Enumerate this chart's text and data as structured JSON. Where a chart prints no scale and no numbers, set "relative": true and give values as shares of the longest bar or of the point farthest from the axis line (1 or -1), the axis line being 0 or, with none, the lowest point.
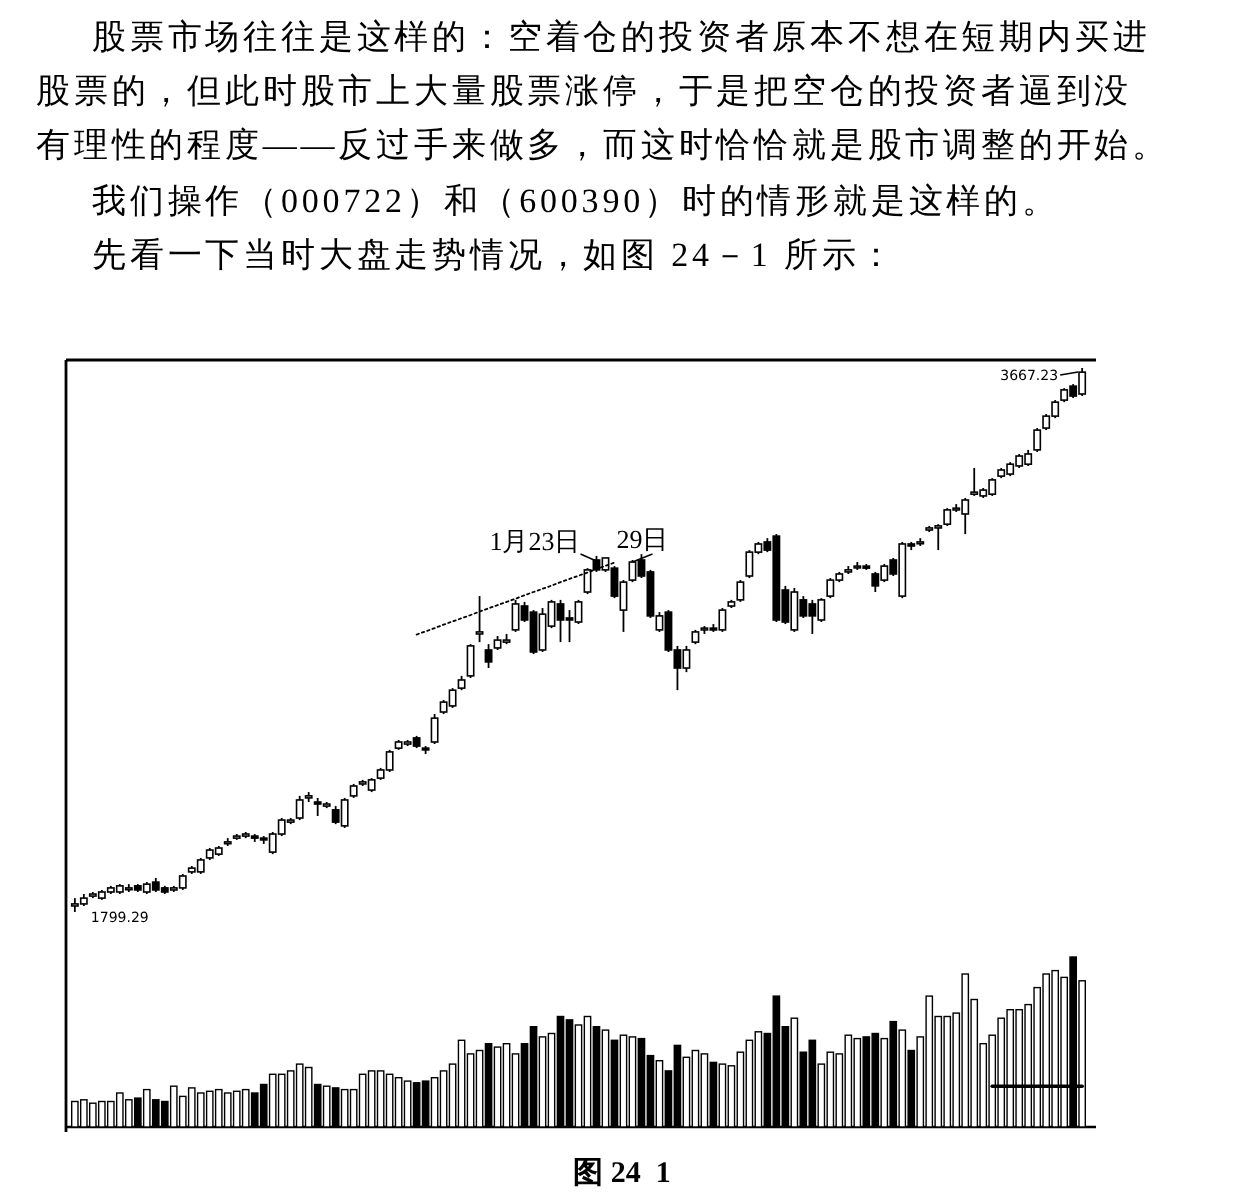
{
  "chart_data": [
    {
      "type": "candlestick",
      "color": "#000000",
      "categories": [
        null,
        null,
        null,
        null,
        null,
        null,
        null,
        null,
        null,
        null,
        null,
        null,
        null,
        null,
        null,
        null,
        null,
        null,
        null,
        null,
        null,
        null,
        null,
        null,
        null,
        null,
        null,
        null,
        null,
        null,
        null,
        null,
        null,
        null,
        null,
        null,
        null,
        null,
        null,
        null,
        null,
        null,
        null,
        null,
        null,
        null,
        null,
        null,
        null,
        null,
        null,
        null,
        null,
        null,
        null,
        null,
        null,
        null,
        null,
        null,
        null,
        null,
        null,
        null,
        null,
        null,
        null,
        null,
        null,
        null,
        null,
        null,
        null,
        null,
        null,
        null,
        null,
        null,
        null,
        null,
        null,
        null,
        null,
        null,
        null,
        null,
        null,
        null,
        null,
        null,
        null,
        null,
        null,
        null,
        null,
        null,
        null,
        null,
        null,
        null,
        null,
        null,
        null,
        null,
        null,
        null,
        null,
        null,
        null,
        null,
        null,
        null,
        null
      ],
      "ohlc": [
        [
          1820,
          1847,
          1799.29,
          1827
        ],
        [
          1827,
          1861,
          1820,
          1847
        ],
        [
          1854,
          1868,
          1847,
          1861
        ],
        [
          1847,
          1875,
          1841,
          1868
        ],
        [
          1868,
          1889,
          1861,
          1882
        ],
        [
          1868,
          1895,
          1861,
          1889
        ],
        [
          1882,
          1895,
          1868,
          1882
        ],
        [
          1889,
          1895,
          1868,
          1875
        ],
        [
          1868,
          1902,
          1861,
          1895
        ],
        [
          1902,
          1916,
          1868,
          1875
        ],
        [
          1882,
          1889,
          1861,
          1868
        ],
        [
          1875,
          1889,
          1868,
          1882
        ],
        [
          1882,
          1930,
          1875,
          1923
        ],
        [
          1937,
          1957,
          1930,
          1950
        ],
        [
          1937,
          1985,
          1930,
          1978
        ],
        [
          1985,
          2019,
          1978,
          2012
        ],
        [
          1998,
          2026,
          1992,
          2019
        ],
        [
          2040,
          2053,
          2026,
          2040
        ],
        [
          2053,
          2067,
          2047,
          2060
        ],
        [
          2060,
          2074,
          2053,
          2067
        ],
        [
          2060,
          2067,
          2040,
          2053
        ],
        [
          2053,
          2060,
          2033,
          2047
        ],
        [
          2005,
          2074,
          1998,
          2067
        ],
        [
          2067,
          2122,
          2060,
          2115
        ],
        [
          2108,
          2122,
          2101,
          2115
        ],
        [
          2122,
          2198,
          2115,
          2184
        ],
        [
          2191,
          2211,
          2177,
          2198
        ],
        [
          2177,
          2191,
          2129,
          2170
        ],
        [
          2163,
          2177,
          2156,
          2170
        ],
        [
          2150,
          2163,
          2101,
          2108
        ],
        [
          2095,
          2191,
          2088,
          2184
        ],
        [
          2198,
          2239,
          2191,
          2232
        ],
        [
          2239,
          2253,
          2232,
          2246
        ],
        [
          2218,
          2259,
          2211,
          2253
        ],
        [
          2259,
          2294,
          2253,
          2287
        ],
        [
          2287,
          2356,
          2280,
          2349
        ],
        [
          2362,
          2390,
          2356,
          2383
        ],
        [
          2376,
          2390,
          2369,
          2383
        ],
        [
          2397,
          2404,
          2362,
          2369
        ],
        [
          2362,
          2369,
          2342,
          2356
        ],
        [
          2383,
          2479,
          2376,
          2465
        ],
        [
          2486,
          2527,
          2479,
          2520
        ],
        [
          2507,
          2568,
          2500,
          2561
        ],
        [
          2568,
          2610,
          2561,
          2596
        ],
        [
          2610,
          2719,
          2603,
          2713
        ],
        [
          2754,
          2884,
          2726,
          2761
        ],
        [
          2699,
          2719,
          2637,
          2658
        ],
        [
          2706,
          2747,
          2699,
          2733
        ],
        [
          2726,
          2754,
          2719,
          2733
        ],
        [
          2768,
          2871,
          2761,
          2857
        ],
        [
          2850,
          2864,
          2795,
          2802
        ],
        [
          2829,
          2836,
          2685,
          2692
        ],
        [
          2699,
          2843,
          2692,
          2822
        ],
        [
          2781,
          2871,
          2774,
          2864
        ],
        [
          2857,
          2871,
          2726,
          2802
        ],
        [
          2809,
          2836,
          2726,
          2802
        ],
        [
          2795,
          2871,
          2788,
          2864
        ],
        [
          2898,
          2980,
          2891,
          2974
        ],
        [
          3008,
          3022,
          2967,
          2974
        ],
        [
          2974,
          3015,
          2967,
          3015
        ],
        [
          2980,
          2987,
          2877,
          2884
        ],
        [
          2836,
          2939,
          2761,
          2932
        ],
        [
          2939,
          3008,
          2932,
          3001
        ],
        [
          3008,
          3028,
          2946,
          2953
        ],
        [
          2967,
          2974,
          2809,
          2816
        ],
        [
          2768,
          2829,
          2761,
          2816
        ],
        [
          2829,
          2836,
          2692,
          2699
        ],
        [
          2699,
          2713,
          2561,
          2637
        ],
        [
          2637,
          2713,
          2623,
          2699
        ],
        [
          2726,
          2768,
          2719,
          2761
        ],
        [
          2768,
          2781,
          2754,
          2774
        ],
        [
          2774,
          2788,
          2761,
          2768
        ],
        [
          2768,
          2843,
          2761,
          2836
        ],
        [
          2850,
          2871,
          2843,
          2864
        ],
        [
          2871,
          2939,
          2864,
          2932
        ],
        [
          2953,
          3042,
          2946,
          3035
        ],
        [
          3035,
          3070,
          3028,
          3063
        ],
        [
          3070,
          3083,
          3035,
          3042
        ],
        [
          3090,
          3097,
          2795,
          2802
        ],
        [
          2905,
          2919,
          2788,
          2795
        ],
        [
          2768,
          2912,
          2761,
          2898
        ],
        [
          2871,
          2884,
          2809,
          2816
        ],
        [
          2857,
          2871,
          2754,
          2816
        ],
        [
          2802,
          2877,
          2795,
          2871
        ],
        [
          2884,
          2946,
          2877,
          2939
        ],
        [
          2939,
          2967,
          2932,
          2960
        ],
        [
          2967,
          2987,
          2960,
          2974
        ],
        [
          2987,
          3001,
          2974,
          2987
        ],
        [
          2987,
          2994,
          2974,
          2980
        ],
        [
          2960,
          2967,
          2898,
          2919
        ],
        [
          2939,
          2994,
          2932,
          2987
        ],
        [
          3008,
          3015,
          2953,
          2960
        ],
        [
          2884,
          3070,
          2877,
          3063
        ],
        [
          3063,
          3070,
          3042,
          3056
        ],
        [
          3070,
          3083,
          3056,
          3070
        ],
        [
          3111,
          3125,
          3104,
          3118
        ],
        [
          3118,
          3131,
          3042,
          3125
        ],
        [
          3131,
          3186,
          3125,
          3180
        ],
        [
          3180,
          3200,
          3173,
          3186
        ],
        [
          3166,
          3221,
          3097,
          3214
        ],
        [
          3234,
          3324,
          3228,
          3241
        ],
        [
          3228,
          3255,
          3221,
          3248
        ],
        [
          3234,
          3289,
          3228,
          3283
        ],
        [
          3296,
          3324,
          3289,
          3317
        ],
        [
          3303,
          3344,
          3296,
          3337
        ],
        [
          3331,
          3372,
          3324,
          3365
        ],
        [
          3337,
          3386,
          3331,
          3372
        ],
        [
          3386,
          3461,
          3379,
          3454
        ],
        [
          3461,
          3509,
          3454,
          3502
        ],
        [
          3502,
          3557,
          3495,
          3550
        ],
        [
          3557,
          3598,
          3550,
          3592
        ],
        [
          3605,
          3612,
          3564,
          3571
        ],
        [
          3578,
          3667.23,
          3571,
          3653
        ]
      ],
      "value_labels": [
        "1799.29",
        null,
        null,
        null,
        null,
        null,
        null,
        null,
        null,
        null,
        null,
        null,
        null,
        null,
        null,
        null,
        null,
        null,
        null,
        null,
        null,
        null,
        null,
        null,
        null,
        null,
        null,
        null,
        null,
        null,
        null,
        null,
        null,
        null,
        null,
        null,
        null,
        null,
        null,
        null,
        null,
        null,
        null,
        null,
        null,
        null,
        null,
        null,
        null,
        null,
        null,
        null,
        null,
        null,
        null,
        null,
        null,
        null,
        null,
        null,
        null,
        null,
        null,
        null,
        null,
        null,
        null,
        null,
        null,
        null,
        null,
        null,
        null,
        null,
        null,
        null,
        null,
        null,
        null,
        null,
        null,
        null,
        null,
        null,
        null,
        null,
        null,
        null,
        null,
        null,
        null,
        null,
        null,
        null,
        null,
        null,
        null,
        null,
        null,
        null,
        null,
        null,
        null,
        null,
        null,
        null,
        null,
        null,
        null,
        null,
        null,
        null,
        "3667.23"
      ],
      "series": [
        {
          "type": "line",
          "color": "#000000",
          "line_style": "dotted",
          "values": [
            null,
            null,
            null,
            null,
            null,
            null,
            null,
            null,
            null,
            null,
            null,
            null,
            null,
            null,
            null,
            null,
            null,
            null,
            null,
            null,
            null,
            null,
            null,
            null,
            null,
            null,
            null,
            null,
            null,
            null,
            null,
            null,
            null,
            null,
            null,
            null,
            null,
            null,
            2752,
            2763,
            2774,
            2786,
            2797,
            2808,
            2819,
            2831,
            2842,
            2853,
            2864,
            2875,
            2887,
            2898,
            2909,
            2920,
            2932,
            2943,
            2954,
            2965,
            2977,
            2988,
            2999,
            null,
            null,
            null,
            null,
            null,
            null,
            null,
            null,
            null,
            null,
            null,
            null,
            null,
            null,
            null,
            null,
            null,
            null,
            null,
            null,
            null,
            null,
            null,
            null,
            null,
            null,
            null,
            null,
            null,
            null,
            null,
            null,
            null,
            null,
            null,
            null,
            null,
            null,
            null,
            null,
            null,
            null,
            null,
            null,
            null,
            null,
            null,
            null,
            null,
            null,
            null,
            null
          ]
        }
      ],
      "annotations": [
        "股票市场往往是这样的：空着仓的投资者原本不想在短期内买进股票的，但此时股市上大量股票涨停，于是把空仓的投资者逼到没有理性的程度——反过手来做多，而这时恰恰就是股市调整的开始。",
        "我们操作（000722）和（600390）时的情形就是这样的。",
        "先看一下当时大盘走势情况，如图 24－1 所示：",
        "1月23日",
        "29日"
      ]
    },
    {
      "type": "bar",
      "relative": true,
      "categories": [
        null,
        null,
        null,
        null,
        null,
        null,
        null,
        null,
        null,
        null,
        null,
        null,
        null,
        null,
        null,
        null,
        null,
        null,
        null,
        null,
        null,
        null,
        null,
        null,
        null,
        null,
        null,
        null,
        null,
        null,
        null,
        null,
        null,
        null,
        null,
        null,
        null,
        null,
        null,
        null,
        null,
        null,
        null,
        null,
        null,
        null,
        null,
        null,
        null,
        null,
        null,
        null,
        null,
        null,
        null,
        null,
        null,
        null,
        null,
        null,
        null,
        null,
        null,
        null,
        null,
        null,
        null,
        null,
        null,
        null,
        null,
        null,
        null,
        null,
        null,
        null,
        null,
        null,
        null,
        null,
        null,
        null,
        null,
        null,
        null,
        null,
        null,
        null,
        null,
        null,
        null,
        null,
        null,
        null,
        null,
        null,
        null,
        null,
        null,
        null,
        null,
        null,
        null,
        null,
        null,
        null,
        null,
        null,
        null,
        null,
        null,
        null,
        null
      ],
      "series": [
        {
          "type": "bar",
          "colors": [
            "#ffffff",
            "#ffffff",
            "#ffffff",
            "#ffffff",
            "#ffffff",
            "#ffffff",
            "#ffffff",
            "#000000",
            "#ffffff",
            "#000000",
            "#000000",
            "#ffffff",
            "#ffffff",
            "#ffffff",
            "#ffffff",
            "#ffffff",
            "#ffffff",
            "#ffffff",
            "#ffffff",
            "#ffffff",
            "#000000",
            "#000000",
            "#ffffff",
            "#ffffff",
            "#ffffff",
            "#ffffff",
            "#ffffff",
            "#000000",
            "#ffffff",
            "#000000",
            "#ffffff",
            "#ffffff",
            "#ffffff",
            "#ffffff",
            "#ffffff",
            "#ffffff",
            "#ffffff",
            "#ffffff",
            "#000000",
            "#000000",
            "#ffffff",
            "#ffffff",
            "#ffffff",
            "#ffffff",
            "#ffffff",
            "#ffffff",
            "#000000",
            "#ffffff",
            "#ffffff",
            "#ffffff",
            "#000000",
            "#000000",
            "#ffffff",
            "#ffffff",
            "#000000",
            "#000000",
            "#ffffff",
            "#ffffff",
            "#000000",
            "#ffffff",
            "#000000",
            "#ffffff",
            "#ffffff",
            "#000000",
            "#000000",
            "#ffffff",
            "#000000",
            "#000000",
            "#ffffff",
            "#ffffff",
            "#ffffff",
            "#000000",
            "#ffffff",
            "#ffffff",
            "#ffffff",
            "#ffffff",
            "#ffffff",
            "#000000",
            "#000000",
            "#000000",
            "#ffffff",
            "#000000",
            "#000000",
            "#ffffff",
            "#ffffff",
            "#ffffff",
            "#ffffff",
            "#ffffff",
            "#000000",
            "#000000",
            "#ffffff",
            "#000000",
            "#ffffff",
            "#000000",
            "#ffffff",
            "#ffffff",
            "#ffffff",
            "#ffffff",
            "#ffffff",
            "#ffffff",
            "#ffffff",
            "#ffffff",
            "#ffffff",
            "#ffffff",
            "#ffffff",
            "#ffffff",
            "#ffffff",
            "#ffffff",
            "#ffffff",
            "#ffffff",
            "#ffffff",
            "#000000",
            "#ffffff"
          ],
          "values": [
            0.15,
            0.16,
            0.14,
            0.15,
            0.15,
            0.2,
            0.16,
            0.17,
            0.22,
            0.16,
            0.15,
            0.24,
            0.18,
            0.23,
            0.2,
            0.21,
            0.22,
            0.2,
            0.21,
            0.22,
            0.2,
            0.25,
            0.31,
            0.31,
            0.33,
            0.37,
            0.35,
            0.25,
            0.24,
            0.23,
            0.22,
            0.22,
            0.31,
            0.33,
            0.33,
            0.31,
            0.29,
            0.27,
            0.26,
            0.27,
            0.29,
            0.33,
            0.37,
            0.51,
            0.43,
            0.45,
            0.49,
            0.47,
            0.49,
            0.43,
            0.49,
            0.59,
            0.53,
            0.55,
            0.65,
            0.63,
            0.6,
            0.65,
            0.59,
            0.57,
            0.51,
            0.54,
            0.53,
            0.52,
            0.42,
            0.39,
            0.33,
            0.48,
            0.41,
            0.45,
            0.43,
            0.38,
            0.37,
            0.36,
            0.44,
            0.51,
            0.56,
            0.55,
            0.77,
            0.59,
            0.64,
            0.44,
            0.51,
            0.37,
            0.44,
            0.43,
            0.54,
            0.52,
            0.53,
            0.55,
            0.52,
            0.62,
            0.57,
            0.45,
            0.53,
            0.77,
            0.65,
            0.65,
            0.67,
            0.9,
            0.75,
            0.49,
            0.54,
            0.64,
            0.69,
            0.69,
            0.72,
            0.82,
            0.9,
            0.92,
            0.88,
            1,
            0.86
          ]
        },
        {
          "type": "line",
          "color": "#000000",
          "values": [
            null,
            null,
            null,
            null,
            null,
            null,
            null,
            null,
            null,
            null,
            null,
            null,
            null,
            null,
            null,
            null,
            null,
            null,
            null,
            null,
            null,
            null,
            null,
            null,
            null,
            null,
            null,
            null,
            null,
            null,
            null,
            null,
            null,
            null,
            null,
            null,
            null,
            null,
            null,
            null,
            null,
            null,
            null,
            null,
            null,
            null,
            null,
            null,
            null,
            null,
            null,
            null,
            null,
            null,
            null,
            null,
            null,
            null,
            null,
            null,
            null,
            null,
            null,
            null,
            null,
            null,
            null,
            null,
            null,
            null,
            null,
            null,
            null,
            null,
            null,
            null,
            null,
            null,
            null,
            null,
            null,
            null,
            null,
            null,
            null,
            null,
            null,
            null,
            null,
            null,
            null,
            null,
            null,
            null,
            null,
            null,
            null,
            null,
            null,
            null,
            null,
            null,
            0.24,
            0.24,
            0.24,
            0.24,
            0.24,
            0.24,
            0.24,
            0.24,
            0.24,
            0.24,
            0.24
          ]
        }
      ],
      "annotations": [
        "图 24  1"
      ]
    }
  ]
}
